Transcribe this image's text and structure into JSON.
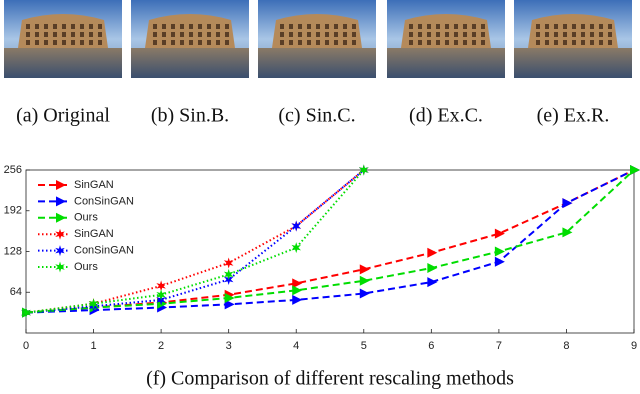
{
  "images": [
    {
      "caption": "(a) Original"
    },
    {
      "caption": "(b) Sin.B."
    },
    {
      "caption": "(c) Sin.C."
    },
    {
      "caption": "(d) Ex.C."
    },
    {
      "caption": "(e) Ex.R."
    }
  ],
  "chart_data": {
    "type": "line",
    "caption": "(f) Comparison of different rescaling methods",
    "x": [
      0,
      1,
      2,
      3,
      4,
      5,
      6,
      7,
      8,
      9
    ],
    "xlim": [
      0,
      9
    ],
    "xticks": [
      0,
      1,
      2,
      3,
      4,
      5,
      6,
      7,
      8,
      9
    ],
    "ylim": [
      0,
      256
    ],
    "yticks": [
      64,
      128,
      192,
      256
    ],
    "legend": "upper left",
    "series": [
      {
        "name": "SinGAN",
        "color": "#ff0000",
        "line_style": "dashed",
        "marker": "triangle",
        "values": [
          32,
          40,
          48,
          60,
          78,
          100,
          126,
          156,
          204,
          256
        ]
      },
      {
        "name": "ConSinGAN",
        "color": "#0000ff",
        "line_style": "dashed",
        "marker": "triangle",
        "values": [
          32,
          36,
          40,
          45,
          52,
          62,
          80,
          112,
          204,
          256
        ]
      },
      {
        "name": "Ours",
        "color": "#00dd00",
        "line_style": "dashed",
        "marker": "triangle",
        "values": [
          32,
          40,
          46,
          55,
          67,
          82,
          102,
          128,
          158,
          256
        ]
      },
      {
        "name": "SinGAN",
        "color": "#ff0000",
        "line_style": "dotted",
        "marker": "star",
        "values": [
          32,
          46,
          74,
          110,
          168,
          256,
          null,
          null,
          null,
          null
        ]
      },
      {
        "name": "ConSinGAN",
        "color": "#0000ff",
        "line_style": "dotted",
        "marker": "star",
        "values": [
          32,
          42,
          52,
          84,
          168,
          256,
          null,
          null,
          null,
          null
        ]
      },
      {
        "name": "Ours",
        "color": "#00dd00",
        "line_style": "dotted",
        "marker": "star",
        "values": [
          32,
          46,
          60,
          92,
          134,
          256,
          null,
          null,
          null,
          null
        ]
      }
    ]
  }
}
